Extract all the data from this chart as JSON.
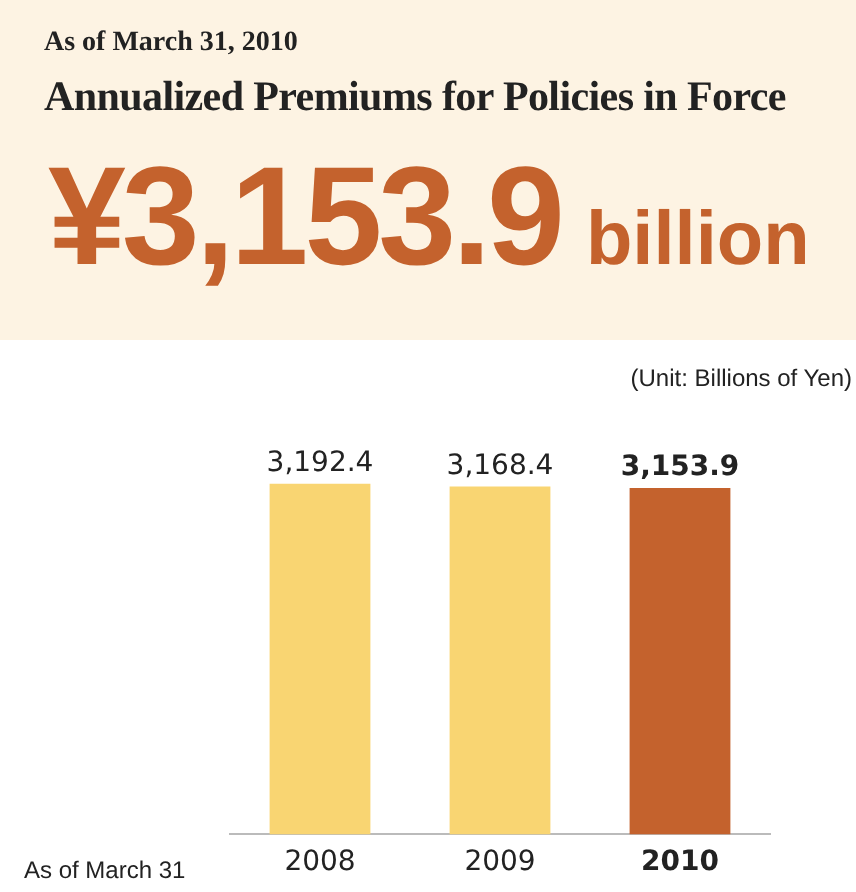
{
  "chart_data": {
    "type": "bar",
    "subtitle": "As of March 31, 2010",
    "title": "Annualized Premiums for Policies in Force",
    "annotations": [
      "¥3,153.9 billion",
      "(Unit: Billions of Yen)",
      "As of March 31"
    ],
    "categories": [
      "2008",
      "2009",
      "2010"
    ],
    "values": [
      3192.4,
      3168.4,
      3153.9
    ],
    "colors": [
      "#f9d572",
      "#f9d572",
      "#c4622d"
    ],
    "value_labels": [
      "3,192.4",
      "3,168.4",
      "3,153.9"
    ],
    "tick_labels": "x",
    "grid": false,
    "legend": false
  }
}
